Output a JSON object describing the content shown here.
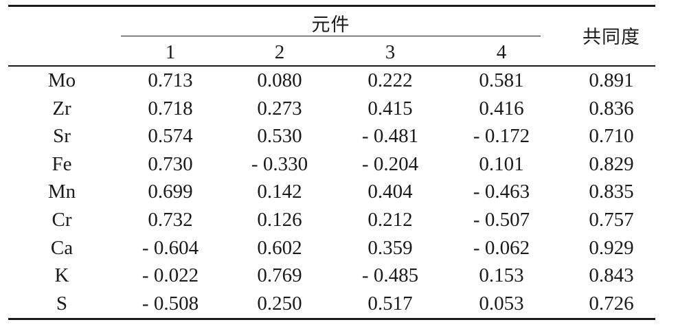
{
  "table": {
    "group_header": "元件",
    "group_columns": [
      "1",
      "2",
      "3",
      "4"
    ],
    "last_column_header": "共同度",
    "rows": [
      {
        "label": "Mo",
        "values": [
          "0.713",
          "0.080",
          "0.222",
          "0.581",
          "0.891"
        ]
      },
      {
        "label": "Zr",
        "values": [
          "0.718",
          "0.273",
          "0.415",
          "0.416",
          "0.836"
        ]
      },
      {
        "label": "Sr",
        "values": [
          "0.574",
          "0.530",
          "- 0.481",
          "- 0.172",
          "0.710"
        ]
      },
      {
        "label": "Fe",
        "values": [
          "0.730",
          "- 0.330",
          "- 0.204",
          "0.101",
          "0.829"
        ]
      },
      {
        "label": "Mn",
        "values": [
          "0.699",
          "0.142",
          "0.404",
          "- 0.463",
          "0.835"
        ]
      },
      {
        "label": "Cr",
        "values": [
          "0.732",
          "0.126",
          "0.212",
          "- 0.507",
          "0.757"
        ]
      },
      {
        "label": "Ca",
        "values": [
          "- 0.604",
          "0.602",
          "0.359",
          "- 0.062",
          "0.929"
        ]
      },
      {
        "label": "K",
        "values": [
          "- 0.022",
          "0.769",
          "- 0.485",
          "0.153",
          "0.843"
        ]
      },
      {
        "label": "S",
        "values": [
          "- 0.508",
          "0.250",
          "0.517",
          "0.053",
          "0.726"
        ]
      }
    ]
  }
}
